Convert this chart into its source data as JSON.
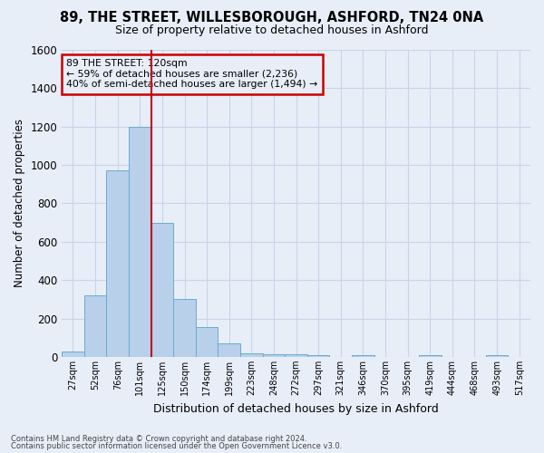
{
  "title_line1": "89, THE STREET, WILLESBOROUGH, ASHFORD, TN24 0NA",
  "title_line2": "Size of property relative to detached houses in Ashford",
  "xlabel": "Distribution of detached houses by size in Ashford",
  "ylabel": "Number of detached properties",
  "bar_labels": [
    "27sqm",
    "52sqm",
    "76sqm",
    "101sqm",
    "125sqm",
    "150sqm",
    "174sqm",
    "199sqm",
    "223sqm",
    "248sqm",
    "272sqm",
    "297sqm",
    "321sqm",
    "346sqm",
    "370sqm",
    "395sqm",
    "419sqm",
    "444sqm",
    "468sqm",
    "493sqm",
    "517sqm"
  ],
  "bar_values": [
    30,
    320,
    970,
    1200,
    700,
    300,
    155,
    70,
    20,
    15,
    15,
    10,
    0,
    10,
    0,
    0,
    10,
    0,
    0,
    10,
    0
  ],
  "bar_color": "#b8d0ea",
  "bar_edge_color": "#6aaad4",
  "vline_color": "#cc0000",
  "vline_position": 4,
  "annotation_text": "89 THE STREET: 120sqm\n← 59% of detached houses are smaller (2,236)\n40% of semi-detached houses are larger (1,494) →",
  "annotation_box_edgecolor": "#cc0000",
  "annotation_text_color": "black",
  "ylim": [
    0,
    1600
  ],
  "yticks": [
    0,
    200,
    400,
    600,
    800,
    1000,
    1200,
    1400,
    1600
  ],
  "grid_color": "#c8d4e8",
  "bg_color": "#e8eef8",
  "footer_line1": "Contains HM Land Registry data © Crown copyright and database right 2024.",
  "footer_line2": "Contains public sector information licensed under the Open Government Licence v3.0."
}
